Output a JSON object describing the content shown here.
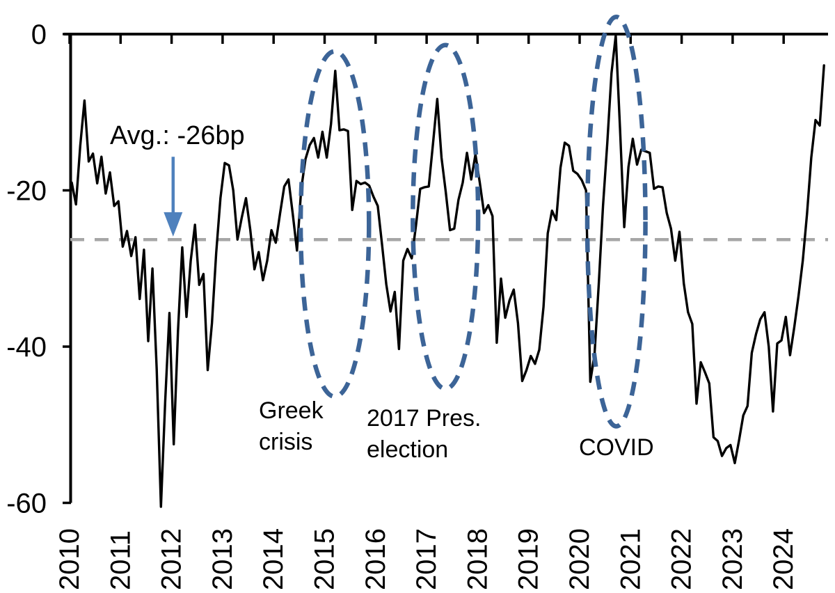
{
  "chart_data": {
    "type": "line",
    "title": "",
    "ylabel": "",
    "xlabel": "",
    "unit": "bp",
    "ylim": [
      -60,
      0
    ],
    "y_ticks": [
      0,
      -20,
      -40,
      -60
    ],
    "y_tick_labels": [
      "0",
      "-20",
      "-40",
      "-60"
    ],
    "x_tick_years": [
      "2010",
      "2011",
      "2012",
      "2013",
      "2014",
      "2015",
      "2016",
      "2017",
      "2018",
      "2019",
      "2020",
      "2021",
      "2022",
      "2023",
      "2024"
    ],
    "x_range_years": [
      2010.0,
      2024.875
    ],
    "grid": "off",
    "series": [
      {
        "name": "spread",
        "start_year": 2010,
        "start_month": 1,
        "frequency": "monthly",
        "values": [
          -19.0,
          -21.8,
          -14.3,
          -8.5,
          -16.3,
          -15.3,
          -19.1,
          -15.7,
          -20.4,
          -17.7,
          -22.0,
          -21.4,
          -27.2,
          -25.2,
          -28.4,
          -26.0,
          -33.9,
          -27.6,
          -39.3,
          -30.0,
          -42.9,
          -60.5,
          -47.0,
          -35.7,
          -52.5,
          -38.0,
          -27.3,
          -36.2,
          -29.0,
          -24.4,
          -32.1,
          -30.7,
          -43.0,
          -37.0,
          -28.0,
          -21.0,
          -16.5,
          -16.8,
          -20.0,
          -26.3,
          -23.5,
          -21.0,
          -25.0,
          -30.1,
          -27.9,
          -31.5,
          -29.0,
          -25.1,
          -26.7,
          -23.0,
          -19.5,
          -18.6,
          -23.0,
          -27.7,
          -19.8,
          -16.0,
          -14.2,
          -13.3,
          -15.8,
          -12.5,
          -15.8,
          -11.5,
          -4.7,
          -12.3,
          -12.2,
          -12.4,
          -22.5,
          -18.8,
          -19.2,
          -19.0,
          -19.4,
          -20.8,
          -22.0,
          -26.9,
          -32.0,
          -35.5,
          -33.0,
          -40.3,
          -29.0,
          -27.5,
          -28.7,
          -24.5,
          -19.8,
          -19.6,
          -19.5,
          -14.0,
          -8.3,
          -15.8,
          -20.2,
          -25.1,
          -24.9,
          -21.2,
          -19.0,
          -15.2,
          -18.6,
          -15.4,
          -19.0,
          -22.9,
          -21.9,
          -23.3,
          -39.5,
          -31.3,
          -36.3,
          -34.1,
          -32.7,
          -37.0,
          -44.4,
          -43.0,
          -41.2,
          -42.2,
          -40.4,
          -34.9,
          -25.5,
          -22.6,
          -23.8,
          -17.1,
          -13.9,
          -14.3,
          -17.5,
          -17.9,
          -18.7,
          -20.0,
          -44.5,
          -41.0,
          -32.0,
          -22.0,
          -14.0,
          -5.0,
          -0.2,
          -12.0,
          -24.7,
          -17.0,
          -13.4,
          -16.7,
          -14.8,
          -15.0,
          -15.2,
          -19.8,
          -19.5,
          -19.6,
          -22.9,
          -24.9,
          -29.0,
          -25.3,
          -31.9,
          -35.6,
          -37.1,
          -47.3,
          -42.0,
          -43.3,
          -44.7,
          -51.6,
          -52.1,
          -54.0,
          -53.0,
          -52.6,
          -54.9,
          -52.0,
          -48.8,
          -47.6,
          -40.8,
          -38.4,
          -36.5,
          -35.6,
          -40.0,
          -48.3,
          -39.6,
          -39.2,
          -36.2,
          -41.1,
          -37.5,
          -33.5,
          -29.0,
          -23.0,
          -15.8,
          -11.0,
          -11.7,
          -4.0
        ]
      }
    ],
    "average_line": {
      "value_bp": -26.3,
      "style": "dashed"
    },
    "labels": {
      "avg": "Avg.: -26bp",
      "greek_line1": "Greek",
      "greek_line2": "crisis",
      "pres_line1": "2017 Pres.",
      "pres_line2": "election",
      "covid": "COVID"
    },
    "annotations": [
      {
        "id": "avg",
        "label": "Avg.: -26bp",
        "arrow_year": 2012.03,
        "arrow_from_bp": -15.7,
        "arrow_to_bp": -26.0
      },
      {
        "id": "greek",
        "label": "Greek crisis",
        "ellipse": {
          "center_year": 2015.2,
          "center_bp": -24.3,
          "radius_years": 0.67,
          "radius_bp": 22.1
        }
      },
      {
        "id": "pres",
        "label": "2017 Pres. election",
        "ellipse": {
          "center_year": 2017.37,
          "center_bp": -23.4,
          "radius_years": 0.64,
          "radius_bp": 22.0
        }
      },
      {
        "id": "covid",
        "label": "COVID",
        "ellipse": {
          "center_year": 2020.72,
          "center_bp": -24.0,
          "radius_years": 0.57,
          "radius_bp": 26.2
        }
      }
    ],
    "colors": {
      "series_line": "#000000",
      "average_line": "#a6a6a6",
      "ellipse": "#3c6497",
      "arrow": "#4f81bd",
      "axis": "#000000",
      "text": "#000000"
    }
  }
}
